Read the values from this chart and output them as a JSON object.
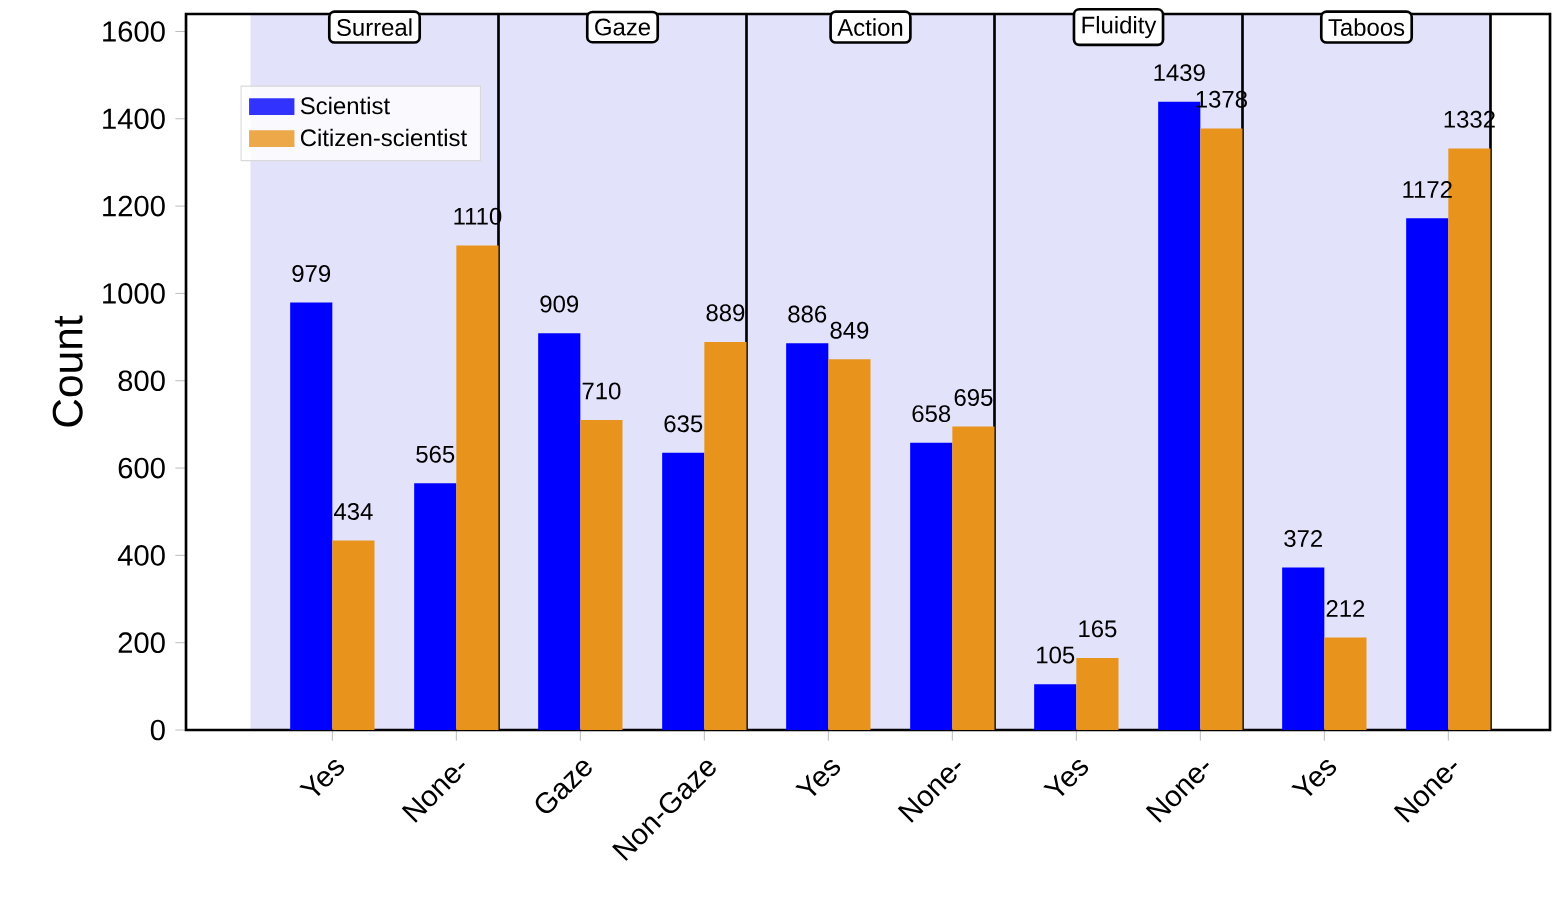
{
  "chart_data": {
    "type": "bar",
    "ylabel": "Count",
    "categories": [
      "Yes",
      "None-",
      "Gaze",
      "Non-Gaze",
      "Yes",
      "None-",
      "Yes",
      "None-",
      "Yes",
      "None-"
    ],
    "series": [
      {
        "name": "Scientist",
        "color": "#0000ff",
        "values": [
          979,
          565,
          909,
          635,
          886,
          658,
          105,
          1439,
          372,
          1172
        ]
      },
      {
        "name": "Citizen-scientist",
        "color": "#e8941c",
        "values": [
          434,
          1110,
          710,
          889,
          849,
          695,
          165,
          1378,
          212,
          1332
        ]
      }
    ],
    "annotations": [
      "Surreal",
      "Gaze",
      "Action",
      "Fluidity",
      "Taboos"
    ],
    "ylim": [
      0,
      1640
    ],
    "yticks": [
      0,
      200,
      400,
      600,
      800,
      1000,
      1200,
      1400,
      1600
    ],
    "data_labels": true,
    "legend": "top left",
    "grid": false
  }
}
